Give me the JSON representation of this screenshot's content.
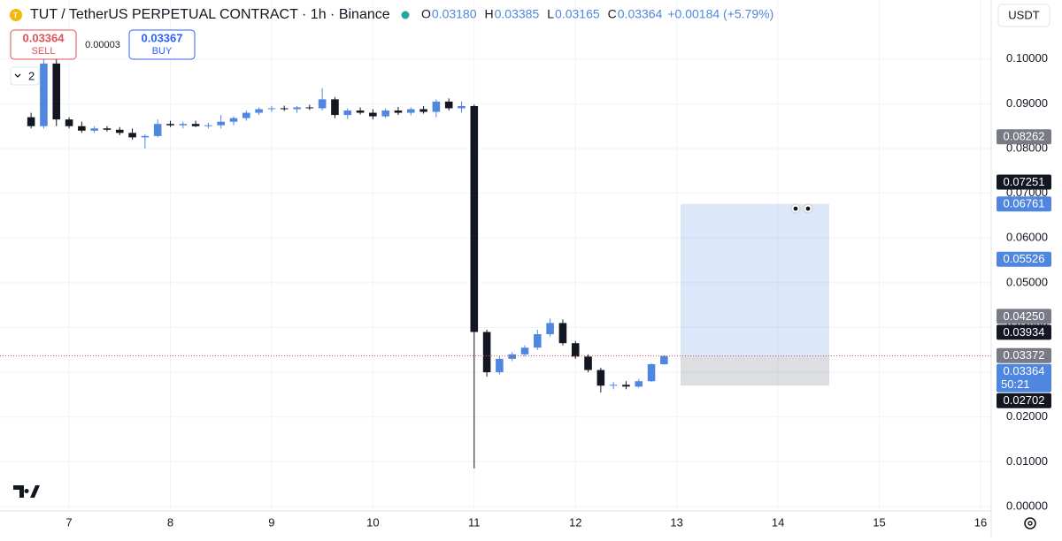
{
  "toolbar": {
    "sell_price": "0.03364",
    "sell_label": "SELL",
    "spread": "0.00003",
    "buy_price": "0.03367",
    "buy_label": "BUY",
    "indicator_count": "2",
    "currency": "USDT"
  },
  "chart_data": {
    "type": "candlestick",
    "title": "TUT / TetherUS PERPETUAL CONTRACT · 1h · Binance",
    "ohlc_legend": [
      {
        "key": "O",
        "value": "0.03180"
      },
      {
        "key": "H",
        "value": "0.03385"
      },
      {
        "key": "L",
        "value": "0.03165"
      },
      {
        "key": "C",
        "value": "0.03364"
      }
    ],
    "change": "+0.00184 (+5.79%)",
    "up_color": "#4f86e0",
    "down_color": "#131722",
    "x": [
      6.625,
      6.75,
      6.875,
      7.0,
      7.125,
      7.25,
      7.375,
      7.5,
      7.625,
      7.75,
      7.875,
      8.0,
      8.125,
      8.25,
      8.375,
      8.5,
      8.625,
      8.75,
      8.875,
      9.0,
      9.125,
      9.25,
      9.375,
      9.5,
      9.625,
      9.75,
      9.875,
      10.0,
      10.125,
      10.25,
      10.375,
      10.5,
      10.625,
      10.75,
      10.875,
      11.0,
      11.125,
      11.25,
      11.375,
      11.5,
      11.625,
      11.75,
      11.875,
      12.0,
      12.125,
      12.25,
      12.375,
      12.5,
      12.625,
      12.75,
      12.875
    ],
    "open": [
      0.087,
      0.085,
      0.099,
      0.0865,
      0.085,
      0.084,
      0.0845,
      0.0842,
      0.0835,
      0.0825,
      0.0828,
      0.0855,
      0.0852,
      0.0855,
      0.085,
      0.0852,
      0.086,
      0.0868,
      0.088,
      0.0888,
      0.089,
      0.0888,
      0.0892,
      0.089,
      0.091,
      0.0875,
      0.0885,
      0.088,
      0.0872,
      0.0885,
      0.088,
      0.0888,
      0.0882,
      0.0905,
      0.089,
      0.0895,
      0.039,
      0.03,
      0.033,
      0.034,
      0.0355,
      0.0385,
      0.041,
      0.0365,
      0.0335,
      0.0305,
      0.027,
      0.0272,
      0.0268,
      0.028,
      0.0318
    ],
    "high": [
      0.088,
      0.1,
      0.103,
      0.087,
      0.086,
      0.085,
      0.085,
      0.0848,
      0.0845,
      0.0832,
      0.0865,
      0.0862,
      0.086,
      0.0862,
      0.0858,
      0.0875,
      0.0872,
      0.0885,
      0.0892,
      0.0895,
      0.0896,
      0.0895,
      0.0898,
      0.0935,
      0.0915,
      0.089,
      0.0892,
      0.0888,
      0.089,
      0.0893,
      0.0892,
      0.0895,
      0.091,
      0.0912,
      0.0905,
      0.0898,
      0.0395,
      0.0335,
      0.0345,
      0.036,
      0.0395,
      0.042,
      0.0418,
      0.037,
      0.034,
      0.031,
      0.0278,
      0.028,
      0.0285,
      0.032,
      0.03385
    ],
    "low": [
      0.0845,
      0.0845,
      0.085,
      0.0845,
      0.0835,
      0.0835,
      0.0838,
      0.083,
      0.082,
      0.08,
      0.0825,
      0.0848,
      0.0845,
      0.0848,
      0.0845,
      0.0845,
      0.0852,
      0.0862,
      0.0875,
      0.0882,
      0.0884,
      0.088,
      0.0886,
      0.0885,
      0.0868,
      0.0866,
      0.0876,
      0.0865,
      0.0868,
      0.0875,
      0.0874,
      0.0878,
      0.087,
      0.0885,
      0.088,
      0.0085,
      0.029,
      0.0295,
      0.0325,
      0.0335,
      0.035,
      0.038,
      0.036,
      0.033,
      0.03,
      0.0255,
      0.0262,
      0.0262,
      0.0265,
      0.0278,
      0.03165
    ],
    "close": [
      0.085,
      0.099,
      0.0865,
      0.085,
      0.084,
      0.0845,
      0.0842,
      0.0835,
      0.0825,
      0.0828,
      0.0855,
      0.0852,
      0.0855,
      0.085,
      0.0852,
      0.086,
      0.0868,
      0.088,
      0.0888,
      0.089,
      0.0888,
      0.0892,
      0.089,
      0.091,
      0.0875,
      0.0885,
      0.088,
      0.0872,
      0.0885,
      0.088,
      0.0888,
      0.0882,
      0.0905,
      0.089,
      0.0895,
      0.039,
      0.03,
      0.033,
      0.034,
      0.0355,
      0.0385,
      0.041,
      0.0365,
      0.0335,
      0.0305,
      0.027,
      0.0272,
      0.0268,
      0.028,
      0.0318,
      0.03364
    ],
    "xlim": [
      6.318,
      16.105
    ],
    "xticks": [
      7,
      8,
      9,
      10,
      11,
      12,
      13,
      14,
      15,
      16
    ],
    "ylim": [
      -0.001,
      0.1132
    ],
    "yticks": [
      {
        "value": 0,
        "label": "0.00000"
      },
      {
        "value": 0.01,
        "label": "0.01000"
      },
      {
        "value": 0.02,
        "label": "0.02000"
      },
      {
        "value": 0.03,
        "label": "0.03000"
      },
      {
        "value": 0.04,
        "label": "0.04000"
      },
      {
        "value": 0.05,
        "label": "0.05000"
      },
      {
        "value": 0.06,
        "label": "0.06000"
      },
      {
        "value": 0.07,
        "label": "0.07000"
      },
      {
        "value": 0.08,
        "label": "0.08000"
      },
      {
        "value": 0.09,
        "label": "0.09000"
      },
      {
        "value": 0.1,
        "label": "0.10000"
      }
    ],
    "grid": true,
    "price_labels": [
      {
        "value": 0.08262,
        "label": "0.08262",
        "color": "#787b86"
      },
      {
        "value": 0.07251,
        "label": "0.07251",
        "color": "#131722"
      },
      {
        "value": 0.06761,
        "label": "0.06761",
        "color": "#4f86e0"
      },
      {
        "value": 0.05526,
        "label": "0.05526",
        "color": "#4f86e0"
      },
      {
        "value": 0.0425,
        "label": "0.04250",
        "color": "#787b86"
      },
      {
        "value": 0.03934,
        "label": "0.03934",
        "color": "#131722"
      },
      {
        "value": 0.03372,
        "label": "0.03372",
        "color": "#787b86"
      },
      {
        "value": 0.03364,
        "label": "0.03364",
        "color": "#4f86e0",
        "countdown": "50:21"
      },
      {
        "value": 0.02702,
        "label": "0.02702",
        "color": "#131722"
      }
    ],
    "position": {
      "target": 0.06761,
      "entry": 0.03364,
      "stop": 0.02702
    }
  }
}
